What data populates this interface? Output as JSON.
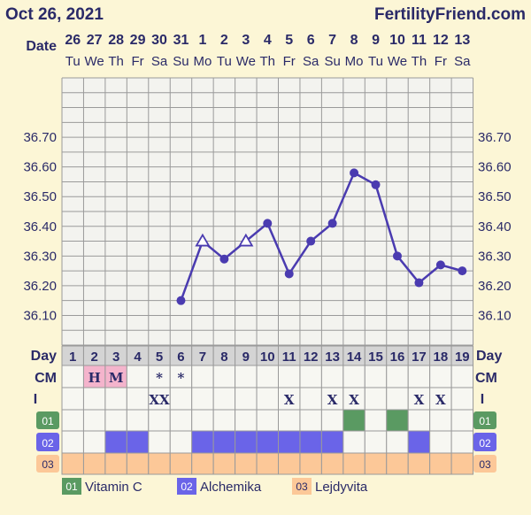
{
  "header": {
    "chart_date": "Oct 26, 2021",
    "brand": "FertilityFriend.com"
  },
  "row_labels": {
    "date": "Date",
    "day": "Day",
    "cm": "CM",
    "intercourse": "I"
  },
  "dates": [
    {
      "date": "26",
      "weekday": "Tu"
    },
    {
      "date": "27",
      "weekday": "We"
    },
    {
      "date": "28",
      "weekday": "Th"
    },
    {
      "date": "29",
      "weekday": "Fr"
    },
    {
      "date": "30",
      "weekday": "Sa"
    },
    {
      "date": "31",
      "weekday": "Su"
    },
    {
      "date": "1",
      "weekday": "Mo"
    },
    {
      "date": "2",
      "weekday": "Tu"
    },
    {
      "date": "3",
      "weekday": "We"
    },
    {
      "date": "4",
      "weekday": "Th"
    },
    {
      "date": "5",
      "weekday": "Fr"
    },
    {
      "date": "6",
      "weekday": "Sa"
    },
    {
      "date": "7",
      "weekday": "Su"
    },
    {
      "date": "8",
      "weekday": "Mo"
    },
    {
      "date": "9",
      "weekday": "Tu"
    },
    {
      "date": "10",
      "weekday": "We"
    },
    {
      "date": "11",
      "weekday": "Th"
    },
    {
      "date": "12",
      "weekday": "Fr"
    },
    {
      "date": "13",
      "weekday": "Sa"
    }
  ],
  "chart_data": {
    "type": "line",
    "x": [
      1,
      2,
      3,
      4,
      5,
      6,
      7,
      8,
      9,
      10,
      11,
      12,
      13,
      14,
      15,
      16,
      17,
      18,
      19
    ],
    "ylim": [
      36.0,
      36.9
    ],
    "yticks": [
      "36.10",
      "36.20",
      "36.30",
      "36.40",
      "36.50",
      "36.60",
      "36.70"
    ],
    "grid": true,
    "series": [
      {
        "values": [
          null,
          null,
          null,
          null,
          null,
          36.15,
          36.35,
          36.29,
          36.35,
          36.41,
          36.24,
          36.35,
          36.41,
          36.58,
          36.54,
          36.3,
          36.21,
          36.27,
          36.25
        ],
        "markers": [
          null,
          null,
          null,
          null,
          null,
          "dot",
          "triangle",
          "dot",
          "triangle",
          "dot",
          "dot",
          "dot",
          "dot",
          "dot",
          "dot",
          "dot",
          "dot",
          "dot",
          "dot"
        ],
        "color": "#4a3bb0"
      }
    ]
  },
  "cm_row": [
    "",
    "H",
    "M",
    "",
    "*",
    "*",
    "",
    "",
    "",
    "",
    "",
    "",
    "",
    "",
    "",
    "",
    "",
    "",
    ""
  ],
  "cm_pink_days": [
    2,
    3
  ],
  "intercourse_row": [
    "",
    "",
    "",
    "",
    "XX",
    "",
    "",
    "",
    "",
    "",
    "X",
    "",
    "X",
    "X",
    "",
    "",
    "X",
    "X",
    ""
  ],
  "supplements": [
    {
      "code": "01",
      "name": "Vitamin C",
      "color": "#5a9a62",
      "days": [
        14,
        16
      ]
    },
    {
      "code": "02",
      "name": "Alchemika",
      "color": "#6a64e8",
      "days": [
        3,
        4,
        7,
        8,
        9,
        10,
        11,
        12,
        13,
        17
      ]
    },
    {
      "code": "03",
      "name": "Lejdyvita",
      "color": "#fcc898",
      "days": [
        1,
        2,
        3,
        4,
        5,
        6,
        7,
        8,
        9,
        10,
        11,
        12,
        13,
        14,
        15,
        16,
        17,
        18,
        19
      ]
    }
  ],
  "colors": {
    "line": "#4a3bb0",
    "text": "#2a2a68",
    "grid": "#9a9a9a",
    "grid_bg": "#f3f3ef",
    "page_bg": "#fcf6d6",
    "cm_pink": "#f4b4cc",
    "day_bg": "#d4d4d4"
  }
}
